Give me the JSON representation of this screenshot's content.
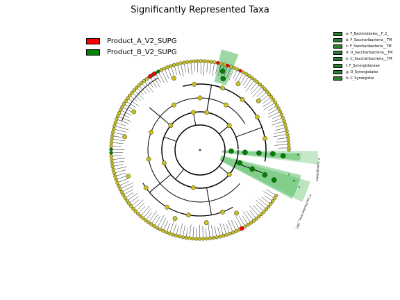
{
  "title": "Significantly Represented Taxa",
  "colors": {
    "group_a": "#ff0000",
    "group_b": "#008000",
    "node_default": "#c8c01c",
    "highlight": "#3cb44b"
  },
  "group_legend": [
    {
      "label": "Product_A_V2_SUPG",
      "color": "#ff0000"
    },
    {
      "label": "Product_B_V2_SUPG",
      "color": "#008000"
    }
  ],
  "clade_legend": [
    {
      "label": "a: F_Bacteroidales__F_2_"
    },
    {
      "label": "b: F_Saccharibacteria__TM"
    },
    {
      "label": "c: F_Saccharibacteria__TM"
    },
    {
      "label": "d: O_Saccharibacteria__TM"
    },
    {
      "label": "e: C_Saccharibacteria__TM"
    },
    {
      "label": "f: F_Synergistaceae"
    },
    {
      "label": "g: O_Synergistales"
    },
    {
      "label": "h: C_Synergistia"
    }
  ],
  "highlight_labels": [
    "P_Synergistetes",
    "P_Saccharibacteria__TM7_"
  ],
  "sector_letters": [
    "a",
    "b",
    "c",
    "d",
    "e",
    "f",
    "g",
    "h"
  ]
}
